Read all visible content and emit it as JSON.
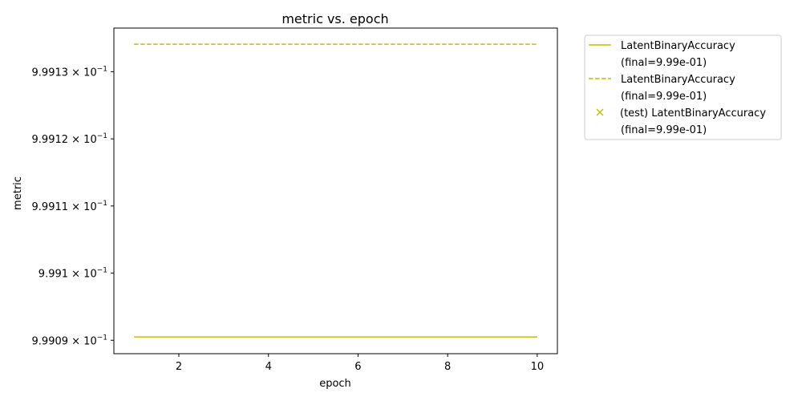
{
  "chart_data": {
    "type": "line",
    "title": "metric vs. epoch",
    "xlabel": "epoch",
    "ylabel": "metric",
    "x_ticks": [
      2,
      4,
      6,
      8,
      10
    ],
    "x_tick_labels": [
      "2",
      "4",
      "6",
      "8",
      "10"
    ],
    "y_ticks": [
      0.99909,
      0.9991,
      0.99911,
      0.99912,
      0.99913
    ],
    "y_tick_labels": [
      {
        "mantissa": "9.9909",
        "base": "10",
        "exponent": "−1"
      },
      {
        "mantissa": "9.991",
        "base": "10",
        "exponent": "−1"
      },
      {
        "mantissa": "9.9911",
        "base": "10",
        "exponent": "−1"
      },
      {
        "mantissa": "9.9912",
        "base": "10",
        "exponent": "−1"
      },
      {
        "mantissa": "9.9913",
        "base": "10",
        "exponent": "−1"
      }
    ],
    "y_scale": "log",
    "xlim": [
      0.55,
      10.45
    ],
    "ylim": [
      0.999088,
      0.9991365
    ],
    "grid": false,
    "legend_position": "outside-right",
    "series": [
      {
        "name": "LatentBinaryAccuracy",
        "legend_line1": "LatentBinaryAccuracy",
        "legend_line2": "(final=9.99e-01)",
        "style": "solid",
        "color": "#bfbf00",
        "x": [
          1,
          2,
          3,
          4,
          5,
          6,
          7,
          8,
          9,
          10
        ],
        "y": [
          0.9990905,
          0.9990905,
          0.9990905,
          0.9990905,
          0.9990905,
          0.9990905,
          0.9990905,
          0.9990905,
          0.9990905,
          0.9990905
        ]
      },
      {
        "name": "LatentBinaryAccuracy",
        "legend_line1": "LatentBinaryAccuracy",
        "legend_line2": "(final=9.99e-01)",
        "style": "dashed",
        "color": "#bfbf00",
        "x": [
          1,
          2,
          3,
          4,
          5,
          6,
          7,
          8,
          9,
          10
        ],
        "y": [
          0.9991341,
          0.9991341,
          0.9991341,
          0.9991341,
          0.9991341,
          0.9991341,
          0.9991341,
          0.9991341,
          0.9991341,
          0.9991341
        ]
      },
      {
        "name": "(test) LatentBinaryAccuracy",
        "legend_line1": "(test) LatentBinaryAccuracy",
        "legend_line2": "(final=9.99e-01)",
        "style": "marker-x",
        "color": "#bfbf00",
        "x": [],
        "y": []
      }
    ]
  }
}
